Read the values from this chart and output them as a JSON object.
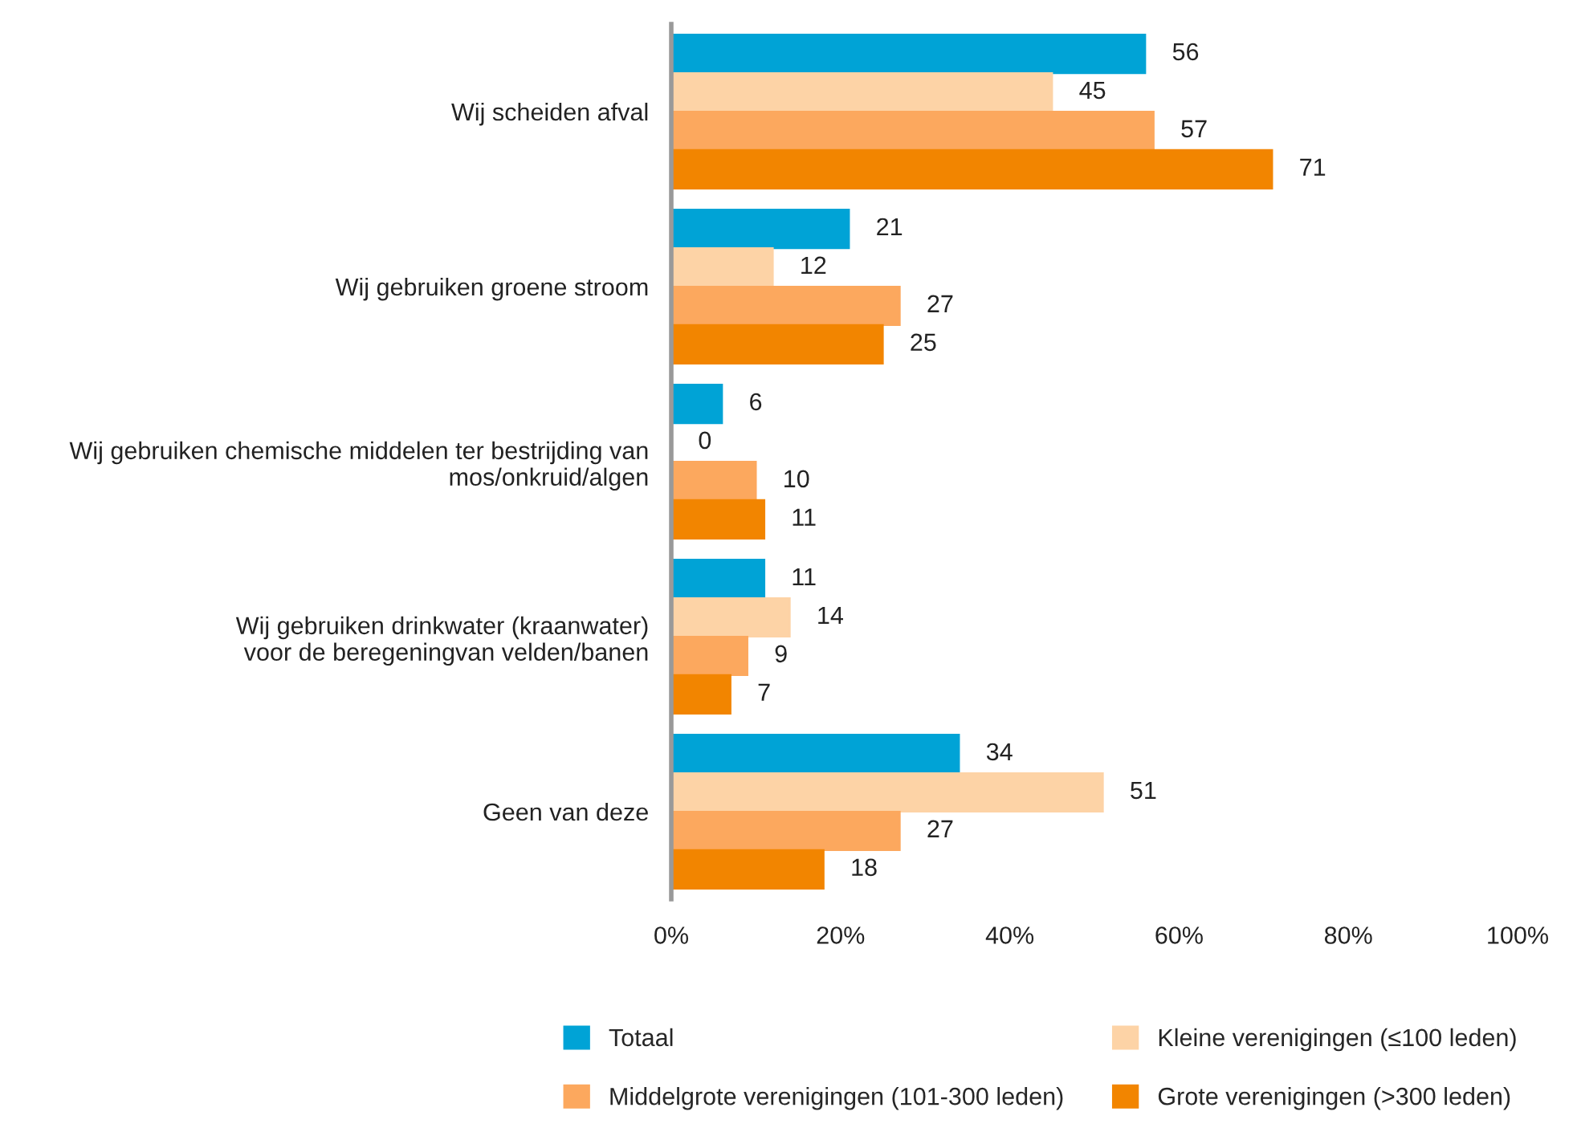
{
  "chart_data": {
    "type": "bar",
    "orientation": "horizontal",
    "categories": [
      "Wij scheiden afval",
      "Wij gebruiken groene stroom",
      "Wij gebruiken chemische middelen ter bestrijding van\nmos/onkruid/algen",
      "Wij gebruiken drinkwater (kraanwater)\nvoor de beregeningvan velden/banen",
      "Geen van deze"
    ],
    "series": [
      {
        "name": "Totaal",
        "color": "#00a3d6",
        "values": [
          56,
          21,
          6,
          11,
          34
        ]
      },
      {
        "name": "Kleine verenigingen (≤100 leden)",
        "color": "#fdd3a6",
        "values": [
          45,
          12,
          0,
          14,
          51
        ]
      },
      {
        "name": "Middelgrote verenigingen (101-300 leden)",
        "color": "#fca85e",
        "values": [
          57,
          27,
          10,
          9,
          27
        ]
      },
      {
        "name": "Grote verenigingen (>300 leden)",
        "color": "#f28500",
        "values": [
          71,
          25,
          11,
          7,
          18
        ]
      }
    ],
    "xlim": [
      0,
      100
    ],
    "xticks": [
      {
        "value": 0,
        "label": "0%"
      },
      {
        "value": 20,
        "label": "20%"
      },
      {
        "value": 40,
        "label": "40%"
      },
      {
        "value": 60,
        "label": "60%"
      },
      {
        "value": 80,
        "label": "80%"
      },
      {
        "value": 100,
        "label": "100%"
      }
    ],
    "data_labels": true,
    "grid": false,
    "legend": "bottom"
  }
}
